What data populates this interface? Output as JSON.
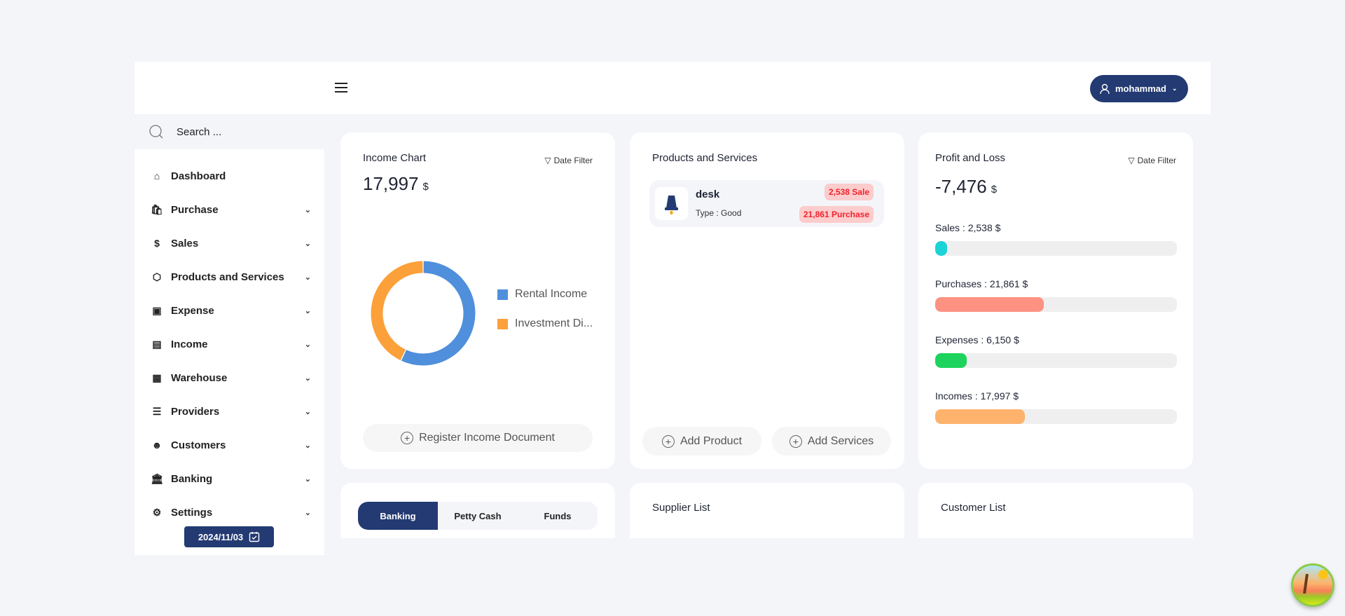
{
  "header": {
    "user_name": "mohammad"
  },
  "sidebar": {
    "search_placeholder": "Search ...",
    "items": [
      {
        "label": "Dashboard",
        "icon": "home-icon"
      },
      {
        "label": "Purchase",
        "icon": "shopping-bag-icon"
      },
      {
        "label": "Sales",
        "icon": "dollar-coin-icon"
      },
      {
        "label": "Products and Services",
        "icon": "box-icon"
      },
      {
        "label": "Expense",
        "icon": "cash-icon"
      },
      {
        "label": "Income",
        "icon": "income-icon"
      },
      {
        "label": "Warehouse",
        "icon": "building-icon"
      },
      {
        "label": "Providers",
        "icon": "list-icon"
      },
      {
        "label": "Customers",
        "icon": "users-icon"
      },
      {
        "label": "Banking",
        "icon": "bank-icon"
      },
      {
        "label": "Settings",
        "icon": "gear-icon"
      }
    ],
    "date": "2024/11/03"
  },
  "income_card": {
    "title": "Income Chart",
    "filter_label": "Date Filter",
    "total": "17,997",
    "currency": "$",
    "register_label": "Register Income Document"
  },
  "chart_data": {
    "type": "pie",
    "donut": true,
    "categories": [
      "Rental Income",
      "Investment Di..."
    ],
    "values": [
      57,
      43
    ],
    "colors": [
      "#4f8fdc",
      "#fca03a"
    ],
    "legend_placement": "right"
  },
  "products_card": {
    "title": "Products and Services",
    "items": [
      {
        "name": "desk",
        "type": "Type : Good",
        "sale": "2,538 Sale",
        "purchase": "21,861 Purchase"
      }
    ],
    "add_product_label": "Add Product",
    "add_services_label": "Add Services"
  },
  "profit_card": {
    "title": "Profit and Loss",
    "filter_label": "Date Filter",
    "total": "-7,476",
    "currency": "$",
    "bars": [
      {
        "label": "Sales : 2,538 $",
        "fraction": 0.05,
        "color": "#1ad3d6"
      },
      {
        "label": "Purchases : 21,861 $",
        "fraction": 0.45,
        "color": "#fd9282"
      },
      {
        "label": "Expenses : 6,150 $",
        "fraction": 0.13,
        "color": "#1ed35d"
      },
      {
        "label": "Incomes : 17,997 $",
        "fraction": 0.37,
        "color": "#fdb36c"
      }
    ]
  },
  "banking_card": {
    "tabs": [
      "Banking",
      "Petty Cash",
      "Funds"
    ]
  },
  "supplier_card": {
    "title": "Supplier List"
  },
  "customer_card": {
    "title": "Customer List"
  }
}
